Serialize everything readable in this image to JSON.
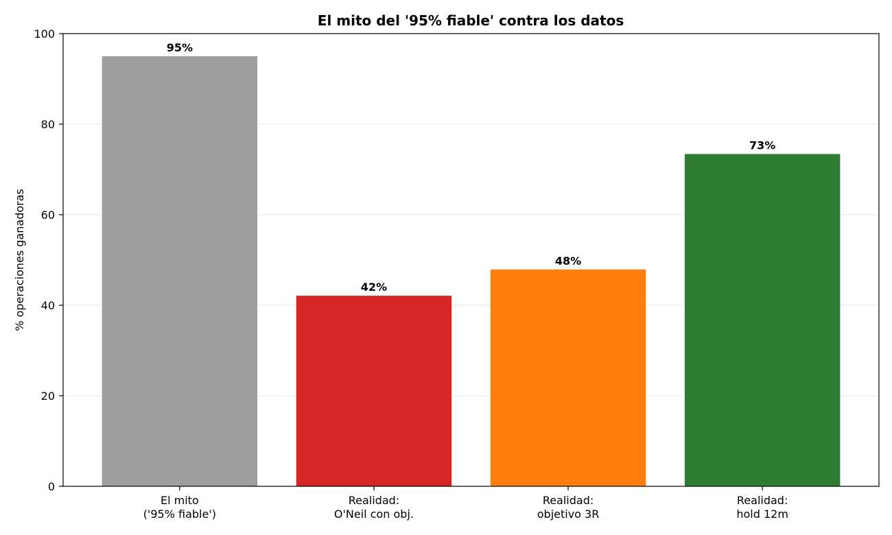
{
  "chart_data": {
    "type": "bar",
    "title": "El mito del '95% fiable' contra los datos",
    "xlabel": "",
    "ylabel": "% operaciones ganadoras",
    "ylim": [
      0,
      100
    ],
    "yticks": [
      0,
      20,
      40,
      60,
      80,
      100
    ],
    "ytick_labels": [
      "0",
      "20",
      "40",
      "60",
      "80",
      "100"
    ],
    "grid": "y-axis, light",
    "categories": [
      [
        "El mito",
        "('95% fiable')"
      ],
      [
        "Realidad:",
        "O'Neil con obj."
      ],
      [
        "Realidad:",
        "objetivo 3R"
      ],
      [
        "Realidad:",
        "hold 12m"
      ]
    ],
    "values": [
      95,
      42.1,
      47.9,
      73.4
    ],
    "data_labels": [
      "95%",
      "42%",
      "48%",
      "73%"
    ],
    "colors": [
      "#9e9e9e",
      "#d62728",
      "#ff7f0e",
      "#2e7d32"
    ]
  }
}
